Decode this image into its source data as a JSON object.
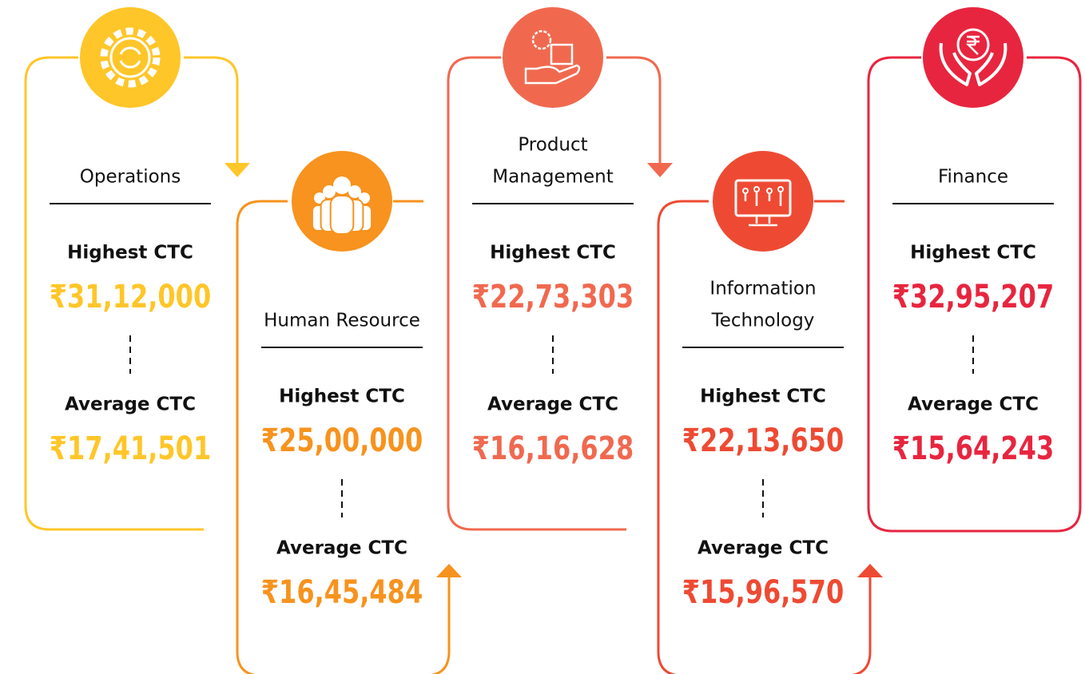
{
  "departments": [
    {
      "name": [
        "Operations"
      ],
      "color": "#FFC629",
      "highest_label": "Highest CTC",
      "highest": "₹31,12,000",
      "average_label": "Average CTC",
      "average": "₹17,41,501"
    },
    {
      "name": [
        "Human Resource"
      ],
      "color": "#F7931E",
      "highest_label": "Highest CTC",
      "highest": "₹25,00,000",
      "average_label": "Average CTC",
      "average": "₹16,45,484"
    },
    {
      "name": [
        "Product",
        "Management"
      ],
      "color": "#F0694F",
      "highest_label": "Highest CTC",
      "highest": "₹22,73,303",
      "average_label": "Average CTC",
      "average": "₹16,16,628"
    },
    {
      "name": [
        "Information",
        "Technology"
      ],
      "color": "#EE4A33",
      "highest_label": "Highest CTC",
      "highest": "₹22,13,650",
      "average_label": "Average CTC",
      "average": "₹15,96,570"
    },
    {
      "name": [
        "Finance"
      ],
      "color": "#E8253F",
      "highest_label": "Highest CTC",
      "highest": "₹32,95,207",
      "average_label": "Average CTC",
      "average": "₹15,64,243"
    }
  ]
}
